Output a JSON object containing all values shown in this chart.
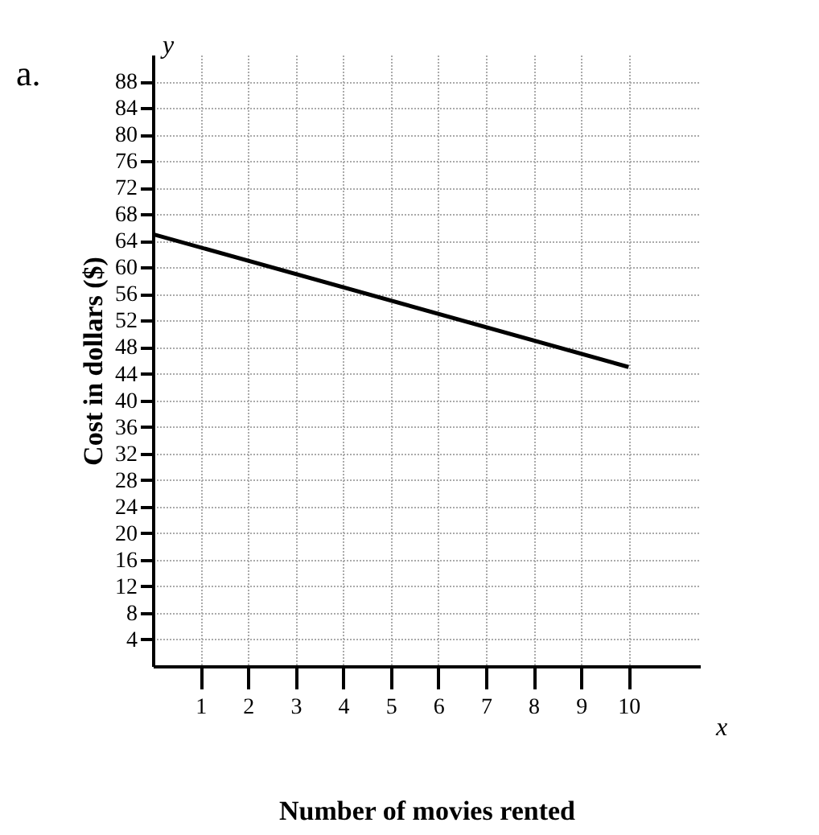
{
  "chart_data": {
    "type": "line",
    "xlabel": "Number of movies rented",
    "ylabel": "Cost in dollars ($)",
    "annotations": [
      "a.",
      "x",
      "y"
    ],
    "x": [
      0,
      10
    ],
    "series": [
      {
        "color": "#000000",
        "values": [
          65,
          45
        ]
      }
    ],
    "xlim": [
      0,
      11.5
    ],
    "ylim": [
      0,
      92
    ],
    "xticks": [
      1,
      2,
      3,
      4,
      5,
      6,
      7,
      8,
      9,
      10
    ],
    "yticks": [
      4,
      8,
      12,
      16,
      20,
      24,
      28,
      32,
      36,
      40,
      44,
      48,
      52,
      56,
      60,
      64,
      68,
      72,
      76,
      80,
      84,
      88
    ],
    "grid": true,
    "marker": "none",
    "line_style": "solid",
    "legend": false
  }
}
